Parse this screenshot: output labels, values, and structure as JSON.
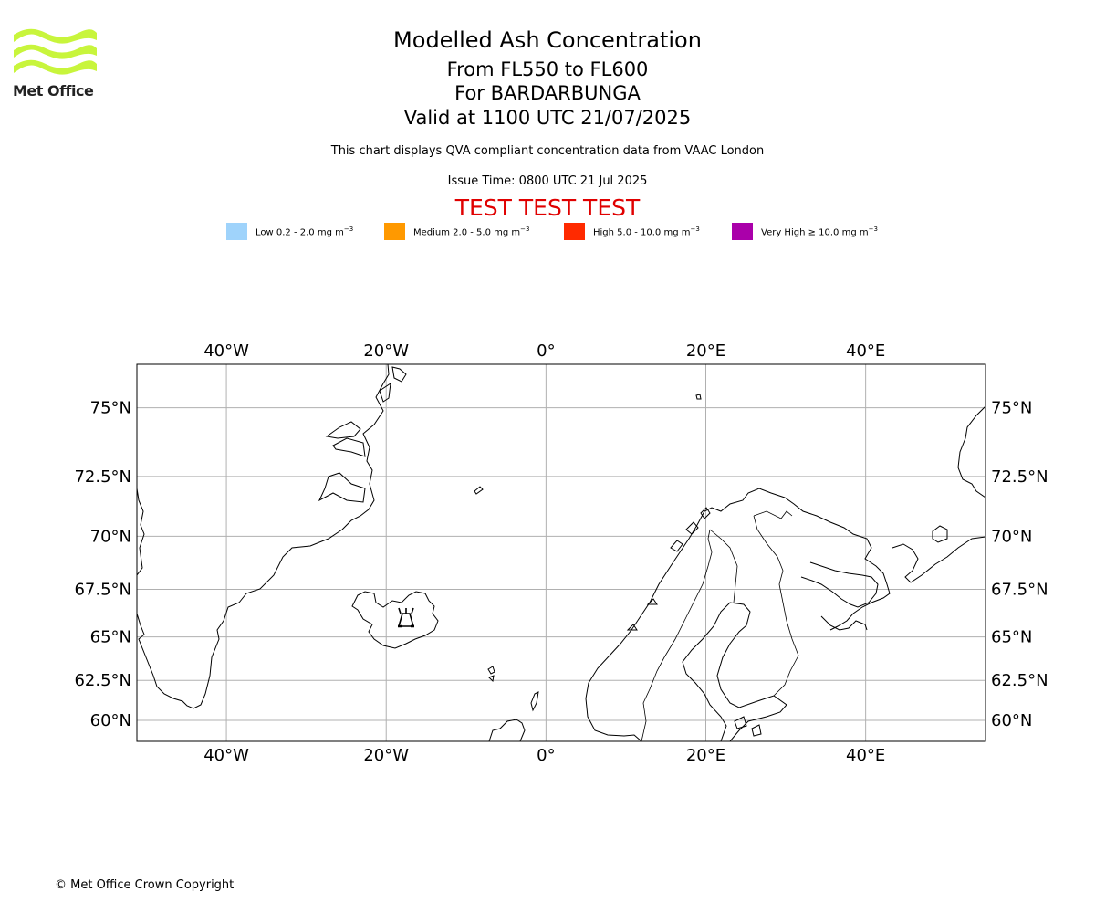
{
  "logo": {
    "text": "Met Office",
    "color": "#c8f53c"
  },
  "title": "Modelled Ash Concentration",
  "level": "From FL550 to FL600",
  "volcano": "For BARDARBUNGA",
  "valid": "Valid at 1100 UTC 21/07/2025",
  "description": "This chart displays QVA compliant concentration data from VAAC London",
  "issue_time": "Issue Time: 0800 UTC 21 Jul 2025",
  "test_banner": "TEST TEST TEST",
  "test_color": "#e00000",
  "legend": [
    {
      "label": "Low 0.2 - 2.0 mg m",
      "color": "#9fd3fb"
    },
    {
      "label": "Medium 2.0 - 5.0 mg m",
      "color": "#ff9900"
    },
    {
      "label": "High 5.0 - 10.0 mg m",
      "color": "#ff2a00"
    },
    {
      "label": "Very High ≥ 10.0 mg m",
      "color": "#aa00aa"
    }
  ],
  "legend_unit_exp": "−3",
  "map": {
    "projection": "plate-carree",
    "lon_range": [
      -51.2,
      55
    ],
    "lat_range": [
      58.6,
      76.4
    ],
    "lon_ticks": [
      "40°W",
      "20°W",
      "0°",
      "20°E",
      "40°E"
    ],
    "lat_ticks": [
      "75°N",
      "72.5°N",
      "70°N",
      "67.5°N",
      "65°N",
      "62.5°N",
      "60°N"
    ],
    "grid": true,
    "volcano_marker": {
      "name": "volcano-icon",
      "lon": -17.5,
      "lat": 64.6
    }
  },
  "copyright": "© Met Office Crown Copyright"
}
